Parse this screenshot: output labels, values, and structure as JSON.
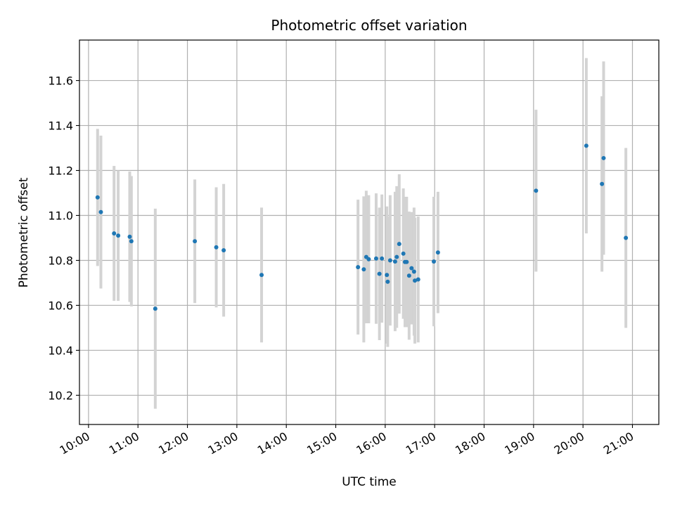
{
  "chart_data": {
    "type": "scatter",
    "title": "Photometric offset variation",
    "xlabel": "UTC time",
    "ylabel": "Photometric offset",
    "x_ticks": [
      "10:00",
      "11:00",
      "12:00",
      "13:00",
      "14:00",
      "15:00",
      "16:00",
      "17:00",
      "18:00",
      "19:00",
      "20:00",
      "21:00"
    ],
    "y_ticks": [
      "10.2",
      "10.4",
      "10.6",
      "10.8",
      "11.0",
      "11.2",
      "11.4",
      "11.6"
    ],
    "xlim": [
      "09:49",
      "21:32"
    ],
    "ylim": [
      10.07,
      11.78
    ],
    "grid": true,
    "colors": {
      "points": "#1f77b4",
      "errorbars": "#d3d3d3",
      "grid": "#b0b0b0"
    },
    "points": [
      {
        "x": "10:11",
        "y": 11.08,
        "err": 0.305
      },
      {
        "x": "10:15",
        "y": 11.015,
        "err": 0.34
      },
      {
        "x": "10:31",
        "y": 10.92,
        "err": 0.3
      },
      {
        "x": "10:36",
        "y": 10.91,
        "err": 0.29
      },
      {
        "x": "10:50",
        "y": 10.905,
        "err": 0.29
      },
      {
        "x": "10:52",
        "y": 10.885,
        "err": 0.29
      },
      {
        "x": "11:21",
        "y": 10.585,
        "err": 0.445
      },
      {
        "x": "12:09",
        "y": 10.885,
        "err": 0.275
      },
      {
        "x": "12:35",
        "y": 10.858,
        "err": 0.267
      },
      {
        "x": "12:44",
        "y": 10.845,
        "err": 0.295
      },
      {
        "x": "13:30",
        "y": 10.735,
        "err": 0.3
      },
      {
        "x": "15:27",
        "y": 10.77,
        "err": 0.3
      },
      {
        "x": "15:34",
        "y": 10.76,
        "err": 0.325
      },
      {
        "x": "15:37",
        "y": 10.815,
        "err": 0.295
      },
      {
        "x": "15:40",
        "y": 10.805,
        "err": 0.285
      },
      {
        "x": "15:49",
        "y": 10.808,
        "err": 0.29
      },
      {
        "x": "15:53",
        "y": 10.74,
        "err": 0.295
      },
      {
        "x": "15:56",
        "y": 10.808,
        "err": 0.285
      },
      {
        "x": "16:02",
        "y": 10.735,
        "err": 0.305
      },
      {
        "x": "16:03",
        "y": 10.705,
        "err": 0.29
      },
      {
        "x": "16:06",
        "y": 10.8,
        "err": 0.29
      },
      {
        "x": "16:12",
        "y": 10.795,
        "err": 0.31
      },
      {
        "x": "16:14",
        "y": 10.815,
        "err": 0.315
      },
      {
        "x": "16:17",
        "y": 10.873,
        "err": 0.31
      },
      {
        "x": "16:22",
        "y": 10.83,
        "err": 0.29
      },
      {
        "x": "16:24",
        "y": 10.793,
        "err": 0.29
      },
      {
        "x": "16:26",
        "y": 10.793,
        "err": 0.29
      },
      {
        "x": "16:29",
        "y": 10.732,
        "err": 0.285
      },
      {
        "x": "16:32",
        "y": 10.765,
        "err": 0.25
      },
      {
        "x": "16:35",
        "y": 10.75,
        "err": 0.285
      },
      {
        "x": "16:36",
        "y": 10.71,
        "err": 0.28
      },
      {
        "x": "16:40",
        "y": 10.715,
        "err": 0.28
      },
      {
        "x": "16:59",
        "y": 10.795,
        "err": 0.288
      },
      {
        "x": "17:04",
        "y": 10.835,
        "err": 0.27
      },
      {
        "x": "19:03",
        "y": 11.11,
        "err": 0.36
      },
      {
        "x": "20:04",
        "y": 11.31,
        "err": 0.39
      },
      {
        "x": "20:23",
        "y": 11.14,
        "err": 0.39
      },
      {
        "x": "20:25",
        "y": 11.255,
        "err": 0.43
      },
      {
        "x": "20:52",
        "y": 10.9,
        "err": 0.4
      }
    ]
  }
}
